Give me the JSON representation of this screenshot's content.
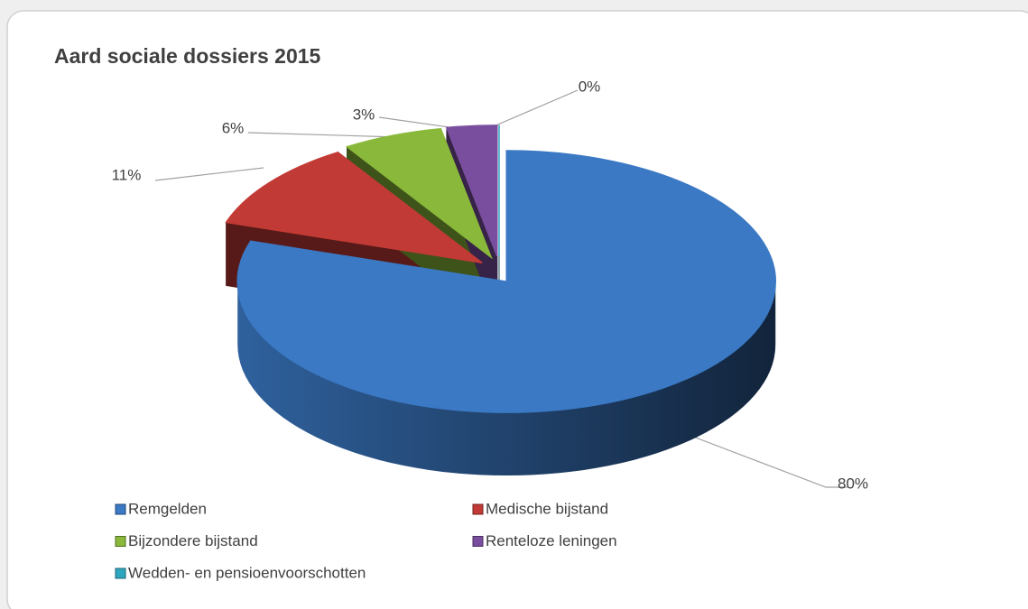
{
  "chart_data": {
    "type": "pie",
    "title": "Aard sociale dossiers 2015",
    "categories": [
      "Remgelden",
      "Medische bijstand",
      "Bijzondere bijstand",
      "Renteloze leningen",
      "Wedden- en pensioenvoorschotten"
    ],
    "values": [
      80,
      11,
      6,
      3,
      0
    ],
    "value_labels": [
      "80%",
      "11%",
      "6%",
      "3%",
      "0%"
    ],
    "colors": [
      "#3b79c4",
      "#c23a35",
      "#8ab83a",
      "#7a4e9e",
      "#2fa6bf"
    ]
  }
}
